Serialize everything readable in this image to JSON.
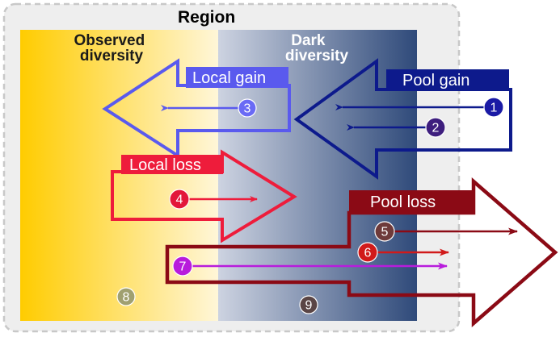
{
  "title": "Region",
  "zones": {
    "observed": [
      "Observed",
      "diversity"
    ],
    "dark": [
      "Dark",
      "diversity"
    ]
  },
  "labels": {
    "local_gain": "Local gain",
    "pool_gain": "Pool gain",
    "local_loss": "Local loss",
    "pool_loss": "Pool loss"
  },
  "markers": [
    "1",
    "2",
    "3",
    "4",
    "5",
    "6",
    "7",
    "8",
    "9"
  ],
  "colors": {
    "region_bg": "#eeeeee",
    "region_border": "#c8c8c8",
    "observed_gradient": [
      "#ffcc00",
      "#fff6d8"
    ],
    "dark_gradient": [
      "#cdd3e1",
      "#2f4a7a"
    ],
    "local_gain": "#5a5aee",
    "pool_gain": "#0d1a8c",
    "local_loss": "#ee1c3b",
    "pool_loss": "#8b0a15",
    "marker_1": "#1a1aa5",
    "marker_2": "#3e1e7e",
    "marker_3": "#6a6af5",
    "marker_4": "#e3173a",
    "marker_5": "#6e3a3a",
    "marker_6": "#d11a1a",
    "marker_7": "#b81cdc",
    "marker_8": "#a0a070",
    "marker_9": "#5a4545"
  }
}
